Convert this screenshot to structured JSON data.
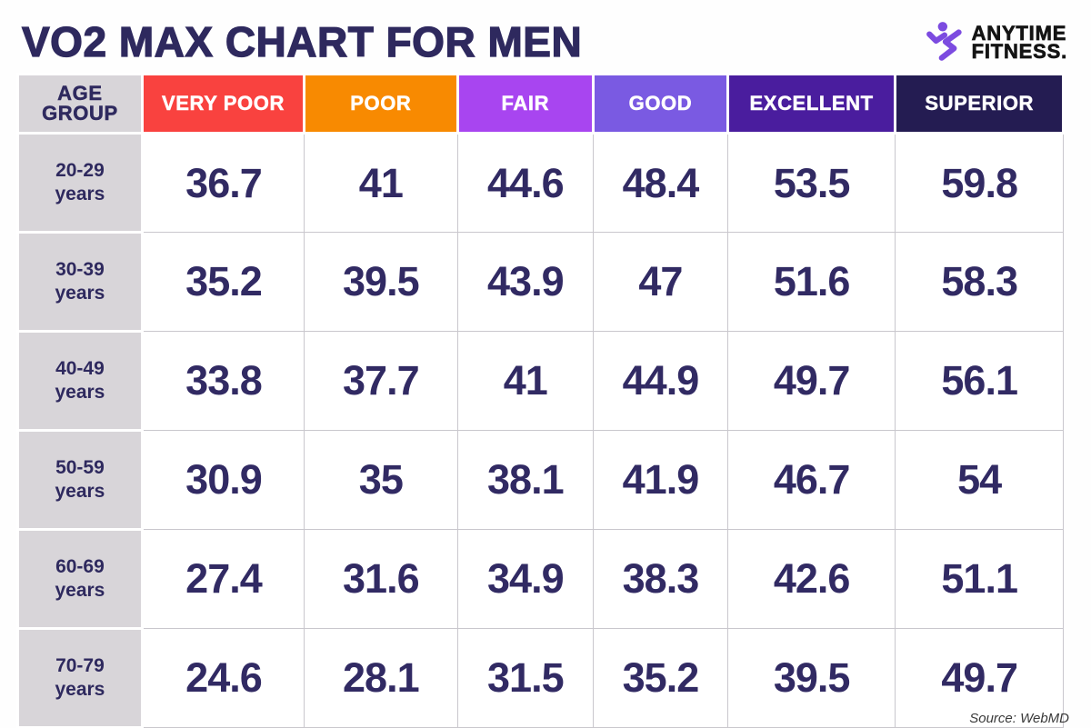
{
  "page": {
    "title": "VO2 MAX CHART FOR MEN",
    "source_note": "Source: WebMD"
  },
  "logo": {
    "brand_name": "ANYTIME\nFITNESS.",
    "icon": "running-man-icon",
    "icon_color": "#7c4be0",
    "text_color": "#141414"
  },
  "colors": {
    "title_text": "#2e295e",
    "value_text": "#312a63",
    "grid_line": "#c9c7cd"
  },
  "chart_data": {
    "type": "table",
    "title": "VO2 MAX CHART FOR MEN",
    "columns": [
      {
        "label": "AGE\nGROUP",
        "bg": "#d8d5d9",
        "text": "#2e295e"
      },
      {
        "label": "VERY POOR",
        "bg": "#f9423f",
        "text": "#ffffff"
      },
      {
        "label": "POOR",
        "bg": "#f88a01",
        "text": "#ffffff"
      },
      {
        "label": "FAIR",
        "bg": "#a845f0",
        "text": "#ffffff"
      },
      {
        "label": "GOOD",
        "bg": "#7a5ae2",
        "text": "#ffffff"
      },
      {
        "label": "EXCELLENT",
        "bg": "#4a1d9e",
        "text": "#ffffff"
      },
      {
        "label": "SUPERIOR",
        "bg": "#241c52",
        "text": "#ffffff"
      }
    ],
    "rows": [
      {
        "age_group": "20-29\nyears",
        "values": [
          "36.7",
          "41",
          "44.6",
          "48.4",
          "53.5",
          "59.8"
        ]
      },
      {
        "age_group": "30-39\nyears",
        "values": [
          "35.2",
          "39.5",
          "43.9",
          "47",
          "51.6",
          "58.3"
        ]
      },
      {
        "age_group": "40-49\nyears",
        "values": [
          "33.8",
          "37.7",
          "41",
          "44.9",
          "49.7",
          "56.1"
        ]
      },
      {
        "age_group": "50-59\nyears",
        "values": [
          "30.9",
          "35",
          "38.1",
          "41.9",
          "46.7",
          "54"
        ]
      },
      {
        "age_group": "60-69\nyears",
        "values": [
          "27.4",
          "31.6",
          "34.9",
          "38.3",
          "42.6",
          "51.1"
        ]
      },
      {
        "age_group": "70-79\nyears",
        "values": [
          "24.6",
          "28.1",
          "31.5",
          "35.2",
          "39.5",
          "49.7"
        ]
      }
    ]
  }
}
